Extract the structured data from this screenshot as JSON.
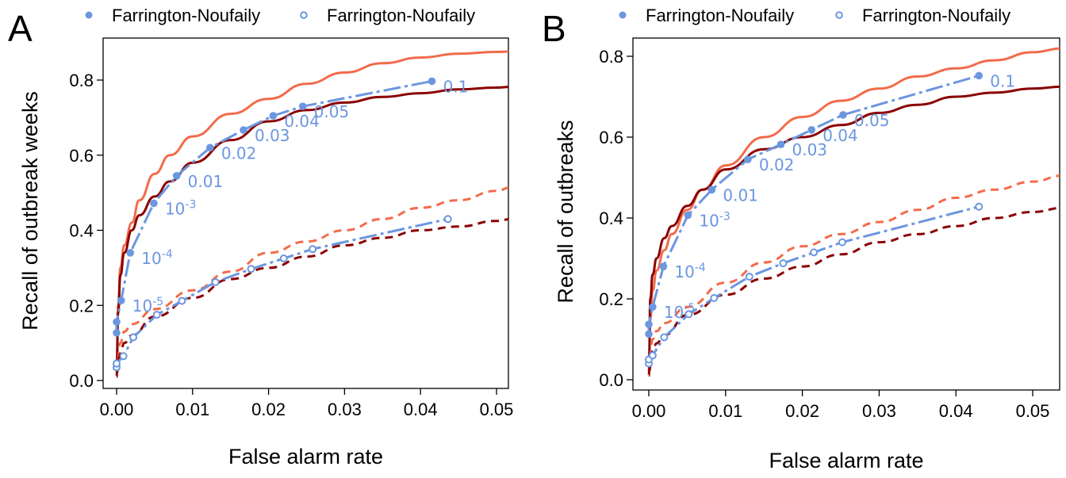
{
  "chart_data": [
    {
      "panel_label": "A",
      "type": "line",
      "xlabel": "False alarm rate",
      "ylabel": "Recall of outbreak weeks",
      "xlim": [
        0,
        0.052
      ],
      "ylim": [
        0,
        0.88
      ],
      "xticks": [
        "0.00",
        "0.01",
        "0.02",
        "0.03",
        "0.04",
        "0.05"
      ],
      "yticks": [
        "0.0",
        "0.2",
        "0.4",
        "0.6",
        "0.8"
      ],
      "legend": [
        "Farrington-Noufaily",
        "Farrington-Noufaily"
      ],
      "legend_position": "top",
      "colors": {
        "light_red": "#f26b4b",
        "dark_red": "#8b0000",
        "blue": "#6b96e0"
      },
      "series": [
        {
          "style": "solid-light-red",
          "x": [
            0,
            0.0002,
            0.0005,
            0.001,
            0.002,
            0.003,
            0.005,
            0.007,
            0.01,
            0.015,
            0.02,
            0.025,
            0.03,
            0.035,
            0.04,
            0.045,
            0.05,
            0.052
          ],
          "y": [
            0.02,
            0.2,
            0.3,
            0.36,
            0.42,
            0.48,
            0.55,
            0.6,
            0.65,
            0.71,
            0.75,
            0.79,
            0.82,
            0.845,
            0.86,
            0.87,
            0.875,
            0.876
          ]
        },
        {
          "style": "solid-dark-red",
          "x": [
            0,
            0.0002,
            0.0005,
            0.001,
            0.002,
            0.003,
            0.005,
            0.007,
            0.01,
            0.015,
            0.02,
            0.025,
            0.03,
            0.035,
            0.04,
            0.045,
            0.05,
            0.052
          ],
          "y": [
            0.01,
            0.18,
            0.28,
            0.34,
            0.4,
            0.44,
            0.49,
            0.53,
            0.58,
            0.64,
            0.69,
            0.72,
            0.74,
            0.755,
            0.765,
            0.775,
            0.78,
            0.782
          ]
        },
        {
          "style": "dashed-light-red",
          "x": [
            0,
            0.0005,
            0.001,
            0.002,
            0.005,
            0.01,
            0.015,
            0.02,
            0.025,
            0.03,
            0.035,
            0.04,
            0.045,
            0.05,
            0.052
          ],
          "y": [
            0.02,
            0.1,
            0.13,
            0.15,
            0.19,
            0.24,
            0.29,
            0.34,
            0.37,
            0.4,
            0.43,
            0.46,
            0.48,
            0.505,
            0.515
          ]
        },
        {
          "style": "dashed-dark-red",
          "x": [
            0,
            0.0005,
            0.001,
            0.002,
            0.005,
            0.01,
            0.015,
            0.02,
            0.025,
            0.03,
            0.035,
            0.04,
            0.045,
            0.05,
            0.052
          ],
          "y": [
            0.02,
            0.07,
            0.1,
            0.12,
            0.17,
            0.22,
            0.27,
            0.3,
            0.33,
            0.36,
            0.38,
            0.4,
            0.41,
            0.425,
            0.43
          ]
        },
        {
          "style": "blue-filled",
          "x": [
            0.0,
            0.0,
            0.0006,
            0.0018,
            0.0049,
            0.0079,
            0.0123,
            0.0167,
            0.0206,
            0.0245,
            0.0415
          ],
          "y": [
            0.127,
            0.156,
            0.213,
            0.34,
            0.472,
            0.545,
            0.62,
            0.667,
            0.705,
            0.73,
            0.797
          ]
        },
        {
          "style": "blue-open",
          "x": [
            0.0,
            0.0,
            0.0009,
            0.0022,
            0.0053,
            0.0086,
            0.013,
            0.0177,
            0.022,
            0.0258,
            0.0436
          ],
          "y": [
            0.035,
            0.045,
            0.065,
            0.115,
            0.175,
            0.212,
            0.262,
            0.297,
            0.325,
            0.35,
            0.43
          ]
        }
      ],
      "threshold_labels": [
        {
          "base": "10",
          "exp": "-5",
          "x": 0.0006,
          "y": 0.213
        },
        {
          "base": "10",
          "exp": "-4",
          "x": 0.0018,
          "y": 0.34
        },
        {
          "base": "10",
          "exp": "-3",
          "x": 0.0049,
          "y": 0.472
        },
        {
          "base": "0.01",
          "exp": "",
          "x": 0.0079,
          "y": 0.545
        },
        {
          "base": "0.02",
          "exp": "",
          "x": 0.0123,
          "y": 0.62
        },
        {
          "base": "0.03",
          "exp": "",
          "x": 0.0167,
          "y": 0.667
        },
        {
          "base": "0.04",
          "exp": "",
          "x": 0.0206,
          "y": 0.705
        },
        {
          "base": "0.05",
          "exp": "",
          "x": 0.0245,
          "y": 0.73
        },
        {
          "base": "0.1",
          "exp": "",
          "x": 0.0415,
          "y": 0.797
        }
      ]
    },
    {
      "panel_label": "B",
      "type": "line",
      "xlabel": "False alarm rate",
      "ylabel": "Recall of outbreaks",
      "xlim": [
        0,
        0.054
      ],
      "ylim": [
        0,
        0.84
      ],
      "xticks": [
        "0.00",
        "0.01",
        "0.02",
        "0.03",
        "0.04",
        "0.05"
      ],
      "yticks": [
        "0.0",
        "0.2",
        "0.4",
        "0.6",
        "0.8"
      ],
      "legend": [
        "Farrington-Noufaily",
        "Farrington-Noufaily"
      ],
      "legend_position": "top",
      "colors": {
        "light_red": "#f26b4b",
        "dark_red": "#8b0000",
        "blue": "#6b96e0"
      },
      "series": [
        {
          "style": "solid-light-red",
          "x": [
            0,
            0.0002,
            0.0005,
            0.001,
            0.002,
            0.003,
            0.005,
            0.007,
            0.01,
            0.015,
            0.02,
            0.025,
            0.03,
            0.035,
            0.04,
            0.045,
            0.05,
            0.054
          ],
          "y": [
            0.02,
            0.15,
            0.22,
            0.27,
            0.32,
            0.36,
            0.42,
            0.47,
            0.53,
            0.6,
            0.65,
            0.69,
            0.72,
            0.75,
            0.77,
            0.79,
            0.81,
            0.82
          ]
        },
        {
          "style": "solid-dark-red",
          "x": [
            0,
            0.0002,
            0.0005,
            0.001,
            0.002,
            0.003,
            0.005,
            0.007,
            0.01,
            0.015,
            0.02,
            0.025,
            0.03,
            0.035,
            0.04,
            0.045,
            0.05,
            0.054
          ],
          "y": [
            0.01,
            0.2,
            0.26,
            0.3,
            0.35,
            0.38,
            0.43,
            0.47,
            0.52,
            0.57,
            0.6,
            0.63,
            0.66,
            0.68,
            0.7,
            0.71,
            0.72,
            0.725
          ]
        },
        {
          "style": "dashed-light-red",
          "x": [
            0,
            0.0005,
            0.001,
            0.002,
            0.005,
            0.01,
            0.015,
            0.02,
            0.025,
            0.03,
            0.035,
            0.04,
            0.045,
            0.05,
            0.054
          ],
          "y": [
            0.02,
            0.1,
            0.12,
            0.14,
            0.18,
            0.24,
            0.29,
            0.33,
            0.36,
            0.39,
            0.42,
            0.45,
            0.47,
            0.49,
            0.505
          ]
        },
        {
          "style": "dashed-dark-red",
          "x": [
            0,
            0.0005,
            0.001,
            0.002,
            0.005,
            0.01,
            0.015,
            0.02,
            0.025,
            0.03,
            0.035,
            0.04,
            0.045,
            0.05,
            0.054
          ],
          "y": [
            0.02,
            0.07,
            0.09,
            0.11,
            0.16,
            0.21,
            0.25,
            0.28,
            0.31,
            0.34,
            0.36,
            0.38,
            0.4,
            0.415,
            0.425
          ]
        },
        {
          "style": "blue-filled",
          "x": [
            0.0,
            0.0,
            0.0005,
            0.0019,
            0.0051,
            0.0082,
            0.0129,
            0.0172,
            0.0212,
            0.0253,
            0.043
          ],
          "y": [
            0.113,
            0.137,
            0.18,
            0.28,
            0.407,
            0.47,
            0.545,
            0.582,
            0.618,
            0.655,
            0.752
          ]
        },
        {
          "style": "blue-open",
          "x": [
            0.0,
            0.0,
            0.0005,
            0.002,
            0.0052,
            0.0085,
            0.0131,
            0.0175,
            0.0215,
            0.0252,
            0.043
          ],
          "y": [
            0.04,
            0.05,
            0.06,
            0.105,
            0.162,
            0.202,
            0.255,
            0.288,
            0.315,
            0.34,
            0.428
          ]
        }
      ],
      "threshold_labels": [
        {
          "base": "10",
          "exp": "-5",
          "x": 0.0005,
          "y": 0.18
        },
        {
          "base": "10",
          "exp": "-4",
          "x": 0.0019,
          "y": 0.28
        },
        {
          "base": "10",
          "exp": "-3",
          "x": 0.0051,
          "y": 0.407
        },
        {
          "base": "0.01",
          "exp": "",
          "x": 0.0082,
          "y": 0.47
        },
        {
          "base": "0.02",
          "exp": "",
          "x": 0.0129,
          "y": 0.545
        },
        {
          "base": "0.03",
          "exp": "",
          "x": 0.0172,
          "y": 0.582
        },
        {
          "base": "0.04",
          "exp": "",
          "x": 0.0212,
          "y": 0.618
        },
        {
          "base": "0.05",
          "exp": "",
          "x": 0.0253,
          "y": 0.655
        },
        {
          "base": "0.1",
          "exp": "",
          "x": 0.043,
          "y": 0.752
        }
      ]
    }
  ]
}
